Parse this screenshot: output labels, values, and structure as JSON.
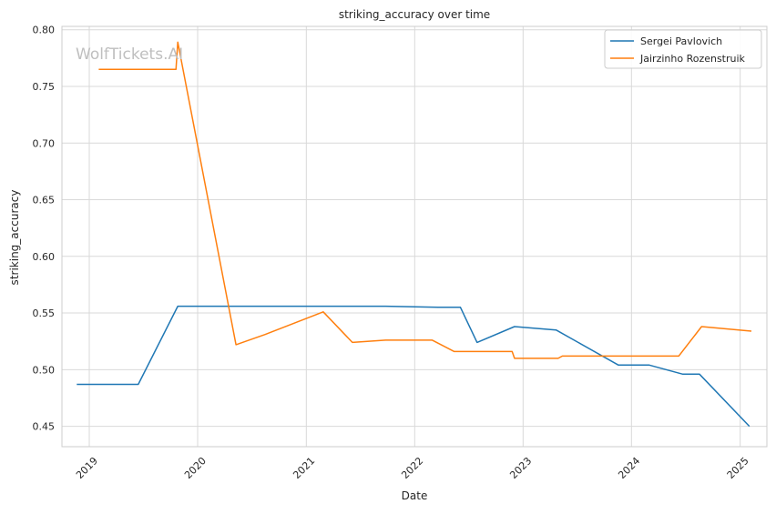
{
  "chart_data": {
    "type": "line",
    "title": "striking_accuracy over time",
    "xlabel": "Date",
    "ylabel": "striking_accuracy",
    "watermark": "WolfTickets.AI",
    "x_ticks": [
      "2019",
      "2020",
      "2021",
      "2022",
      "2023",
      "2024",
      "2025"
    ],
    "y_ticks": [
      "0.45",
      "0.50",
      "0.55",
      "0.60",
      "0.65",
      "0.70",
      "0.75",
      "0.80"
    ],
    "xlim": [
      "2018-10-01",
      "2025-04-01"
    ],
    "ylim": [
      0.432,
      0.803
    ],
    "grid": true,
    "legend_position": "top-right",
    "series": [
      {
        "name": "Sergei Pavlovich",
        "color": "#1f77b4",
        "points": [
          [
            "2018-11-20",
            0.487
          ],
          [
            "2019-06-15",
            0.487
          ],
          [
            "2019-10-26",
            0.556
          ],
          [
            "2021-09-25",
            0.556
          ],
          [
            "2022-03-20",
            0.555
          ],
          [
            "2022-06-04",
            0.555
          ],
          [
            "2022-07-30",
            0.524
          ],
          [
            "2022-12-03",
            0.538
          ],
          [
            "2023-04-22",
            0.535
          ],
          [
            "2023-11-18",
            0.504
          ],
          [
            "2024-03-01",
            0.504
          ],
          [
            "2024-06-22",
            0.496
          ],
          [
            "2024-08-17",
            0.496
          ],
          [
            "2025-02-01",
            0.45
          ]
        ]
      },
      {
        "name": "Jairzinho Rozenstruik",
        "color": "#ff7f0e",
        "points": [
          [
            "2019-02-02",
            0.765
          ],
          [
            "2019-10-20",
            0.765
          ],
          [
            "2019-10-26",
            0.789
          ],
          [
            "2020-05-09",
            0.522
          ],
          [
            "2020-08-15",
            0.531
          ],
          [
            "2021-02-27",
            0.551
          ],
          [
            "2021-06-05",
            0.524
          ],
          [
            "2021-09-25",
            0.526
          ],
          [
            "2022-03-01",
            0.526
          ],
          [
            "2022-05-14",
            0.516
          ],
          [
            "2022-11-25",
            0.516
          ],
          [
            "2022-12-03",
            0.51
          ],
          [
            "2023-04-29",
            0.51
          ],
          [
            "2023-05-13",
            0.512
          ],
          [
            "2024-06-08",
            0.512
          ],
          [
            "2024-08-24",
            0.538
          ],
          [
            "2025-02-08",
            0.534
          ]
        ]
      }
    ]
  }
}
